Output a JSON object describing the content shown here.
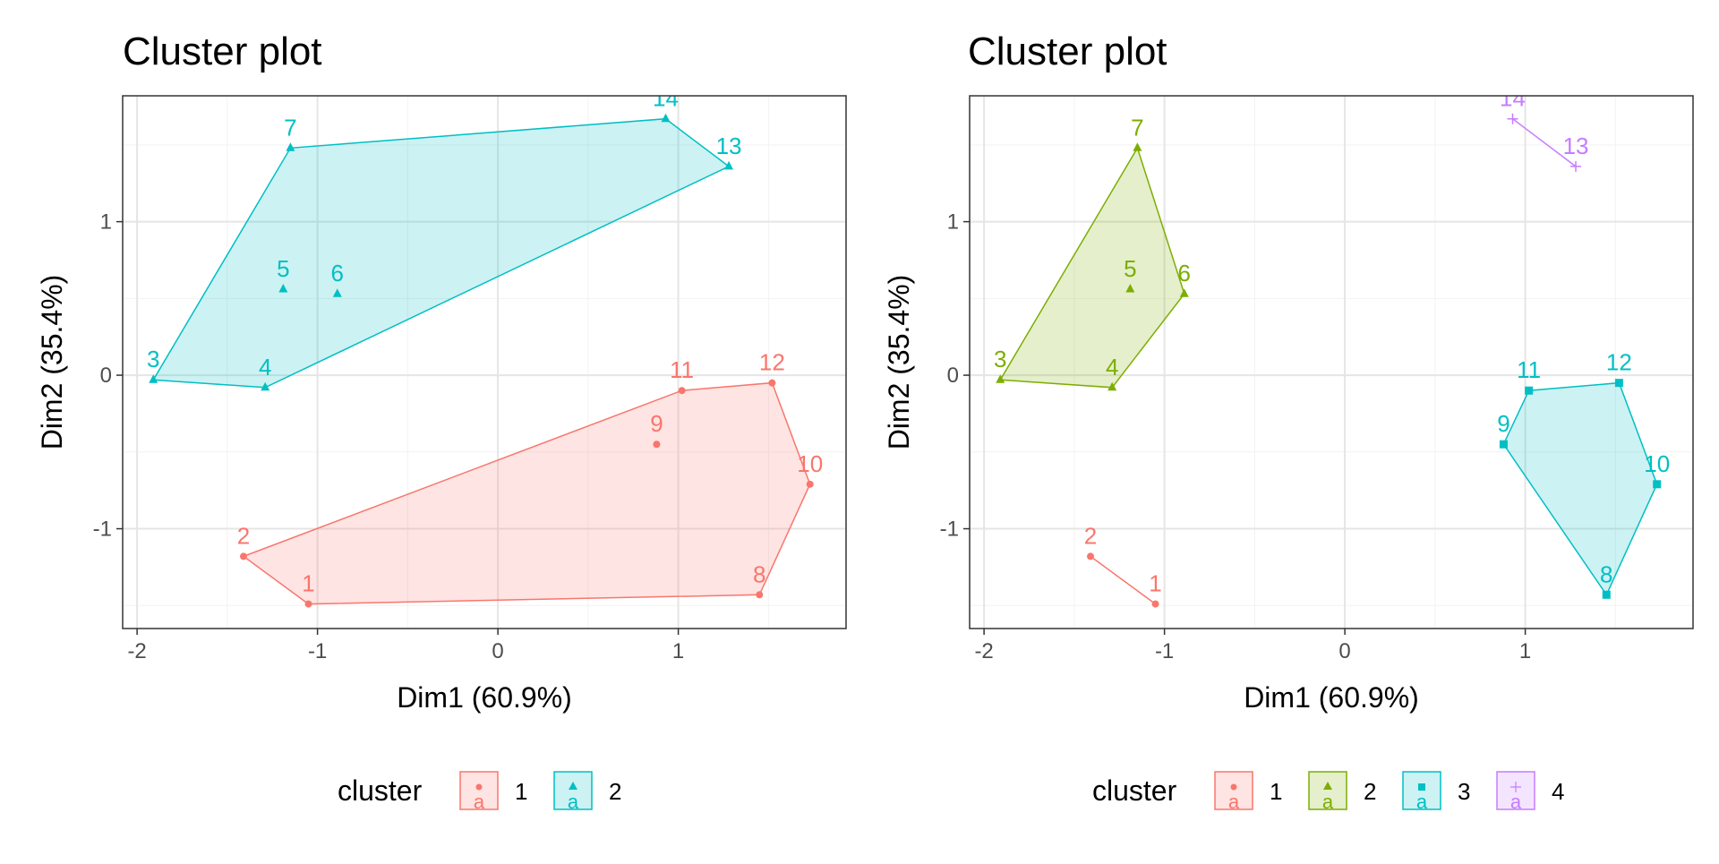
{
  "chart_data": [
    {
      "type": "scatter",
      "title": "Cluster plot",
      "xlabel": "Dim1 (60.9%)",
      "ylabel": "Dim2 (35.4%)",
      "xlim": [
        -2.08,
        1.93
      ],
      "ylim": [
        -1.65,
        1.82
      ],
      "xticks": [
        -2,
        -1,
        0,
        1
      ],
      "xtick_labels": [
        "-2",
        "-1",
        "0",
        "1"
      ],
      "yticks": [
        -1,
        0,
        1
      ],
      "ytick_labels": [
        "-1",
        "0",
        "1"
      ],
      "grid": true,
      "legend_title": "cluster",
      "legend_position": "bottom",
      "series": [
        {
          "name": "1",
          "color": "#F8766D",
          "marker": "circle",
          "points": [
            {
              "label": "1",
              "x": -1.05,
              "y": -1.49
            },
            {
              "label": "2",
              "x": -1.41,
              "y": -1.18
            },
            {
              "label": "8",
              "x": 1.45,
              "y": -1.43
            },
            {
              "label": "9",
              "x": 0.88,
              "y": -0.45
            },
            {
              "label": "10",
              "x": 1.73,
              "y": -0.71
            },
            {
              "label": "11",
              "x": 1.02,
              "y": -0.1
            },
            {
              "label": "12",
              "x": 1.52,
              "y": -0.05
            }
          ],
          "hull": [
            "1",
            "8",
            "10",
            "12",
            "11",
            "2"
          ]
        },
        {
          "name": "2",
          "color": "#00BFC4",
          "marker": "triangle",
          "points": [
            {
              "label": "3",
              "x": -1.91,
              "y": -0.03
            },
            {
              "label": "4",
              "x": -1.29,
              "y": -0.08
            },
            {
              "label": "5",
              "x": -1.19,
              "y": 0.56
            },
            {
              "label": "6",
              "x": -0.89,
              "y": 0.53
            },
            {
              "label": "7",
              "x": -1.15,
              "y": 1.48
            },
            {
              "label": "13",
              "x": 1.28,
              "y": 1.36
            },
            {
              "label": "14",
              "x": 0.93,
              "y": 1.67
            }
          ],
          "hull": [
            "3",
            "4",
            "13",
            "14",
            "7"
          ]
        }
      ]
    },
    {
      "type": "scatter",
      "title": "Cluster plot",
      "xlabel": "Dim1 (60.9%)",
      "ylabel": "Dim2 (35.4%)",
      "xlim": [
        -2.08,
        1.93
      ],
      "ylim": [
        -1.65,
        1.82
      ],
      "xticks": [
        -2,
        -1,
        0,
        1
      ],
      "xtick_labels": [
        "-2",
        "-1",
        "0",
        "1"
      ],
      "yticks": [
        -1,
        0,
        1
      ],
      "ytick_labels": [
        "-1",
        "0",
        "1"
      ],
      "grid": true,
      "legend_title": "cluster",
      "legend_position": "bottom",
      "series": [
        {
          "name": "1",
          "color": "#F8766D",
          "marker": "circle",
          "points": [
            {
              "label": "1",
              "x": -1.05,
              "y": -1.49
            },
            {
              "label": "2",
              "x": -1.41,
              "y": -1.18
            }
          ],
          "hull": [
            "1",
            "2"
          ]
        },
        {
          "name": "2",
          "color": "#7CAE00",
          "marker": "triangle",
          "points": [
            {
              "label": "3",
              "x": -1.91,
              "y": -0.03
            },
            {
              "label": "4",
              "x": -1.29,
              "y": -0.08
            },
            {
              "label": "5",
              "x": -1.19,
              "y": 0.56
            },
            {
              "label": "6",
              "x": -0.89,
              "y": 0.53
            },
            {
              "label": "7",
              "x": -1.15,
              "y": 1.48
            }
          ],
          "hull": [
            "3",
            "4",
            "6",
            "7"
          ]
        },
        {
          "name": "3",
          "color": "#00BFC4",
          "marker": "square",
          "points": [
            {
              "label": "8",
              "x": 1.45,
              "y": -1.43
            },
            {
              "label": "9",
              "x": 0.88,
              "y": -0.45
            },
            {
              "label": "10",
              "x": 1.73,
              "y": -0.71
            },
            {
              "label": "11",
              "x": 1.02,
              "y": -0.1
            },
            {
              "label": "12",
              "x": 1.52,
              "y": -0.05
            }
          ],
          "hull": [
            "9",
            "11",
            "12",
            "10",
            "8"
          ]
        },
        {
          "name": "4",
          "color": "#C77CFF",
          "marker": "plus",
          "points": [
            {
              "label": "13",
              "x": 1.28,
              "y": 1.36
            },
            {
              "label": "14",
              "x": 0.93,
              "y": 1.67
            }
          ],
          "hull": [
            "14",
            "13"
          ]
        }
      ]
    }
  ]
}
